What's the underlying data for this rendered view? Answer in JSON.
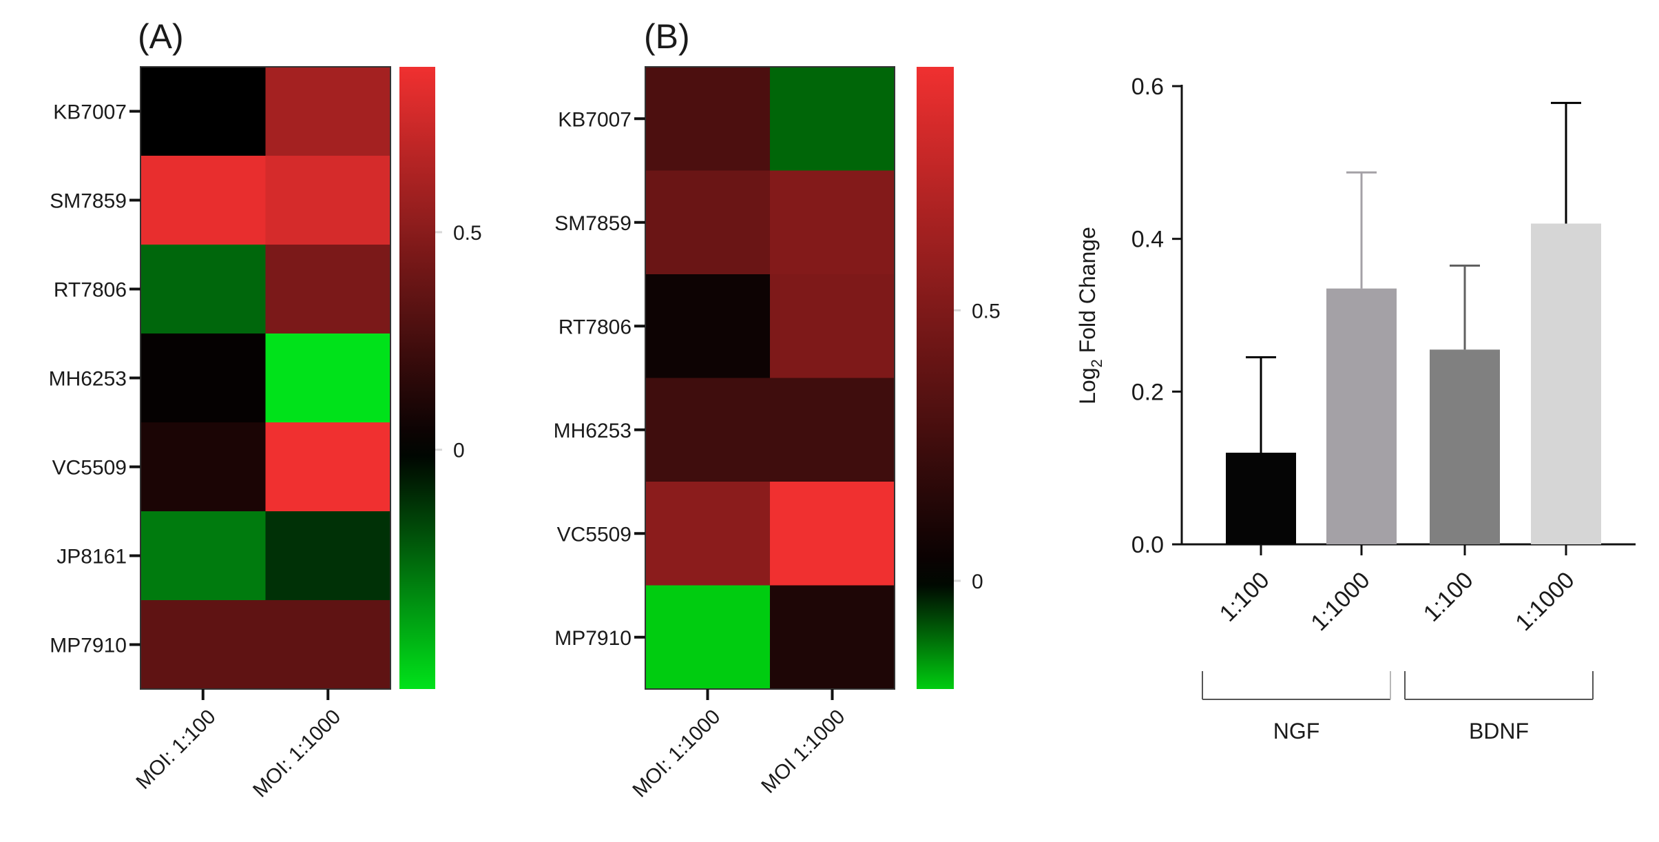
{
  "chart_data": [
    {
      "type": "heatmap",
      "panel_label": "(A)",
      "rows": [
        "KB7007",
        "SM7859",
        "RT7806",
        "MH6253",
        "VC5509",
        "JP8161",
        "MP7910"
      ],
      "columns": [
        "MOI: 1:100",
        "MOI: 1:1000"
      ],
      "values": [
        [
          0.0,
          0.6
        ],
        [
          0.85,
          0.78
        ],
        [
          -0.25,
          0.45
        ],
        [
          0.02,
          -0.55
        ],
        [
          0.1,
          0.88
        ],
        [
          -0.3,
          -0.12
        ],
        [
          0.35,
          0.35
        ]
      ],
      "colorbar": {
        "min": -0.55,
        "max": 0.88,
        "ticks": [
          0,
          0.5
        ],
        "tick_labels": [
          "0",
          "0.5"
        ]
      },
      "colors": {
        "low": "#00e21a",
        "mid": "#000000",
        "high": "#f03030"
      }
    },
    {
      "type": "heatmap",
      "panel_label": "(B)",
      "rows": [
        "KB7007",
        "SM7859",
        "RT7806",
        "MH6253",
        "VC5509",
        "MP7910"
      ],
      "columns": [
        "MOI: 1:1000",
        "MOI 1:1000"
      ],
      "values": [
        [
          0.3,
          -0.1
        ],
        [
          0.42,
          0.52
        ],
        [
          0.05,
          0.5
        ],
        [
          0.25,
          0.25
        ],
        [
          0.55,
          0.95
        ],
        [
          -0.2,
          0.12
        ]
      ],
      "colorbar": {
        "min": -0.2,
        "max": 0.95,
        "ticks": [
          0,
          0.5
        ],
        "tick_labels": [
          "0",
          "0.5"
        ]
      },
      "colors": {
        "low": "#00cc10",
        "mid": "#000000",
        "high": "#f03030"
      }
    },
    {
      "type": "bar",
      "categories": [
        "1:100",
        "1:1000",
        "1:100",
        "1:1000"
      ],
      "values": [
        0.12,
        0.335,
        0.255,
        0.42
      ],
      "error_upper": [
        0.245,
        0.487,
        0.365,
        0.578
      ],
      "bar_colors": [
        "#050505",
        "#a4a1a6",
        "#808080",
        "#d6d6d6"
      ],
      "error_colors": [
        "#000000",
        "#a4a1a6",
        "#606060",
        "#000000"
      ],
      "ylabel_main": "Log",
      "ylabel_sub": "2",
      "ylabel_rest": " Fold Change",
      "ylim": [
        0,
        0.6
      ],
      "yticks": [
        0,
        0.2,
        0.4,
        0.6
      ],
      "ytick_labels": [
        "0.0",
        "0.2",
        "0.4",
        "0.6"
      ],
      "groups": [
        {
          "label": "NGF",
          "members": [
            0,
            1
          ]
        },
        {
          "label": "BDNF",
          "members": [
            2,
            3
          ]
        }
      ]
    }
  ]
}
